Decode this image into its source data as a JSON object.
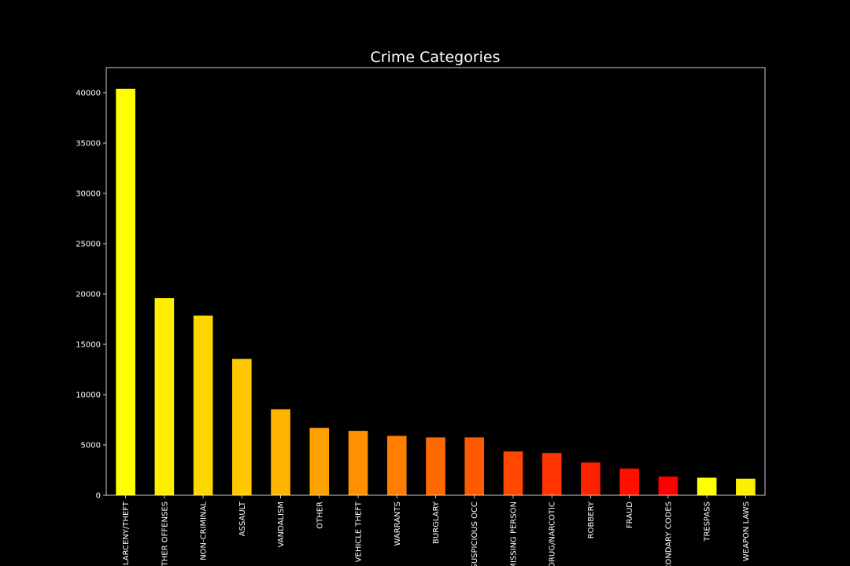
{
  "chart_data": {
    "type": "bar",
    "title": "Crime Categories",
    "xlabel": "",
    "ylabel": "",
    "categories": [
      "LARCENY/THEFT",
      "OTHER OFFENSES",
      "NON-CRIMINAL",
      "ASSAULT",
      "VANDALISM",
      "OTHER",
      "VEHICLE THEFT",
      "WARRANTS",
      "BURGLARY",
      "SUSPICIOUS OCC",
      "MISSING PERSON",
      "DRUG/NARCOTIC",
      "ROBBERY",
      "FRAUD",
      "SECONDARY CODES",
      "TRESPASS",
      "WEAPON LAWS"
    ],
    "values": [
      40400,
      19600,
      17850,
      13550,
      8550,
      6700,
      6400,
      5900,
      5750,
      5750,
      4350,
      4200,
      3250,
      2650,
      1850,
      1750,
      1650
    ],
    "colors": [
      "#ffff00",
      "#ffee00",
      "#ffd700",
      "#ffc800",
      "#ffb400",
      "#ffa200",
      "#ff9000",
      "#ff7d00",
      "#ff6a00",
      "#ff5a00",
      "#ff4700",
      "#ff3400",
      "#ff2200",
      "#ff1000",
      "#ff0000",
      "#ffff00",
      "#ffee00"
    ],
    "ylim": [
      0,
      42500
    ],
    "yticks": [
      0,
      5000,
      10000,
      15000,
      20000,
      25000,
      30000,
      35000,
      40000
    ],
    "grid": false,
    "legend": "none",
    "background": "#000000",
    "foreground": "#ffffff"
  }
}
